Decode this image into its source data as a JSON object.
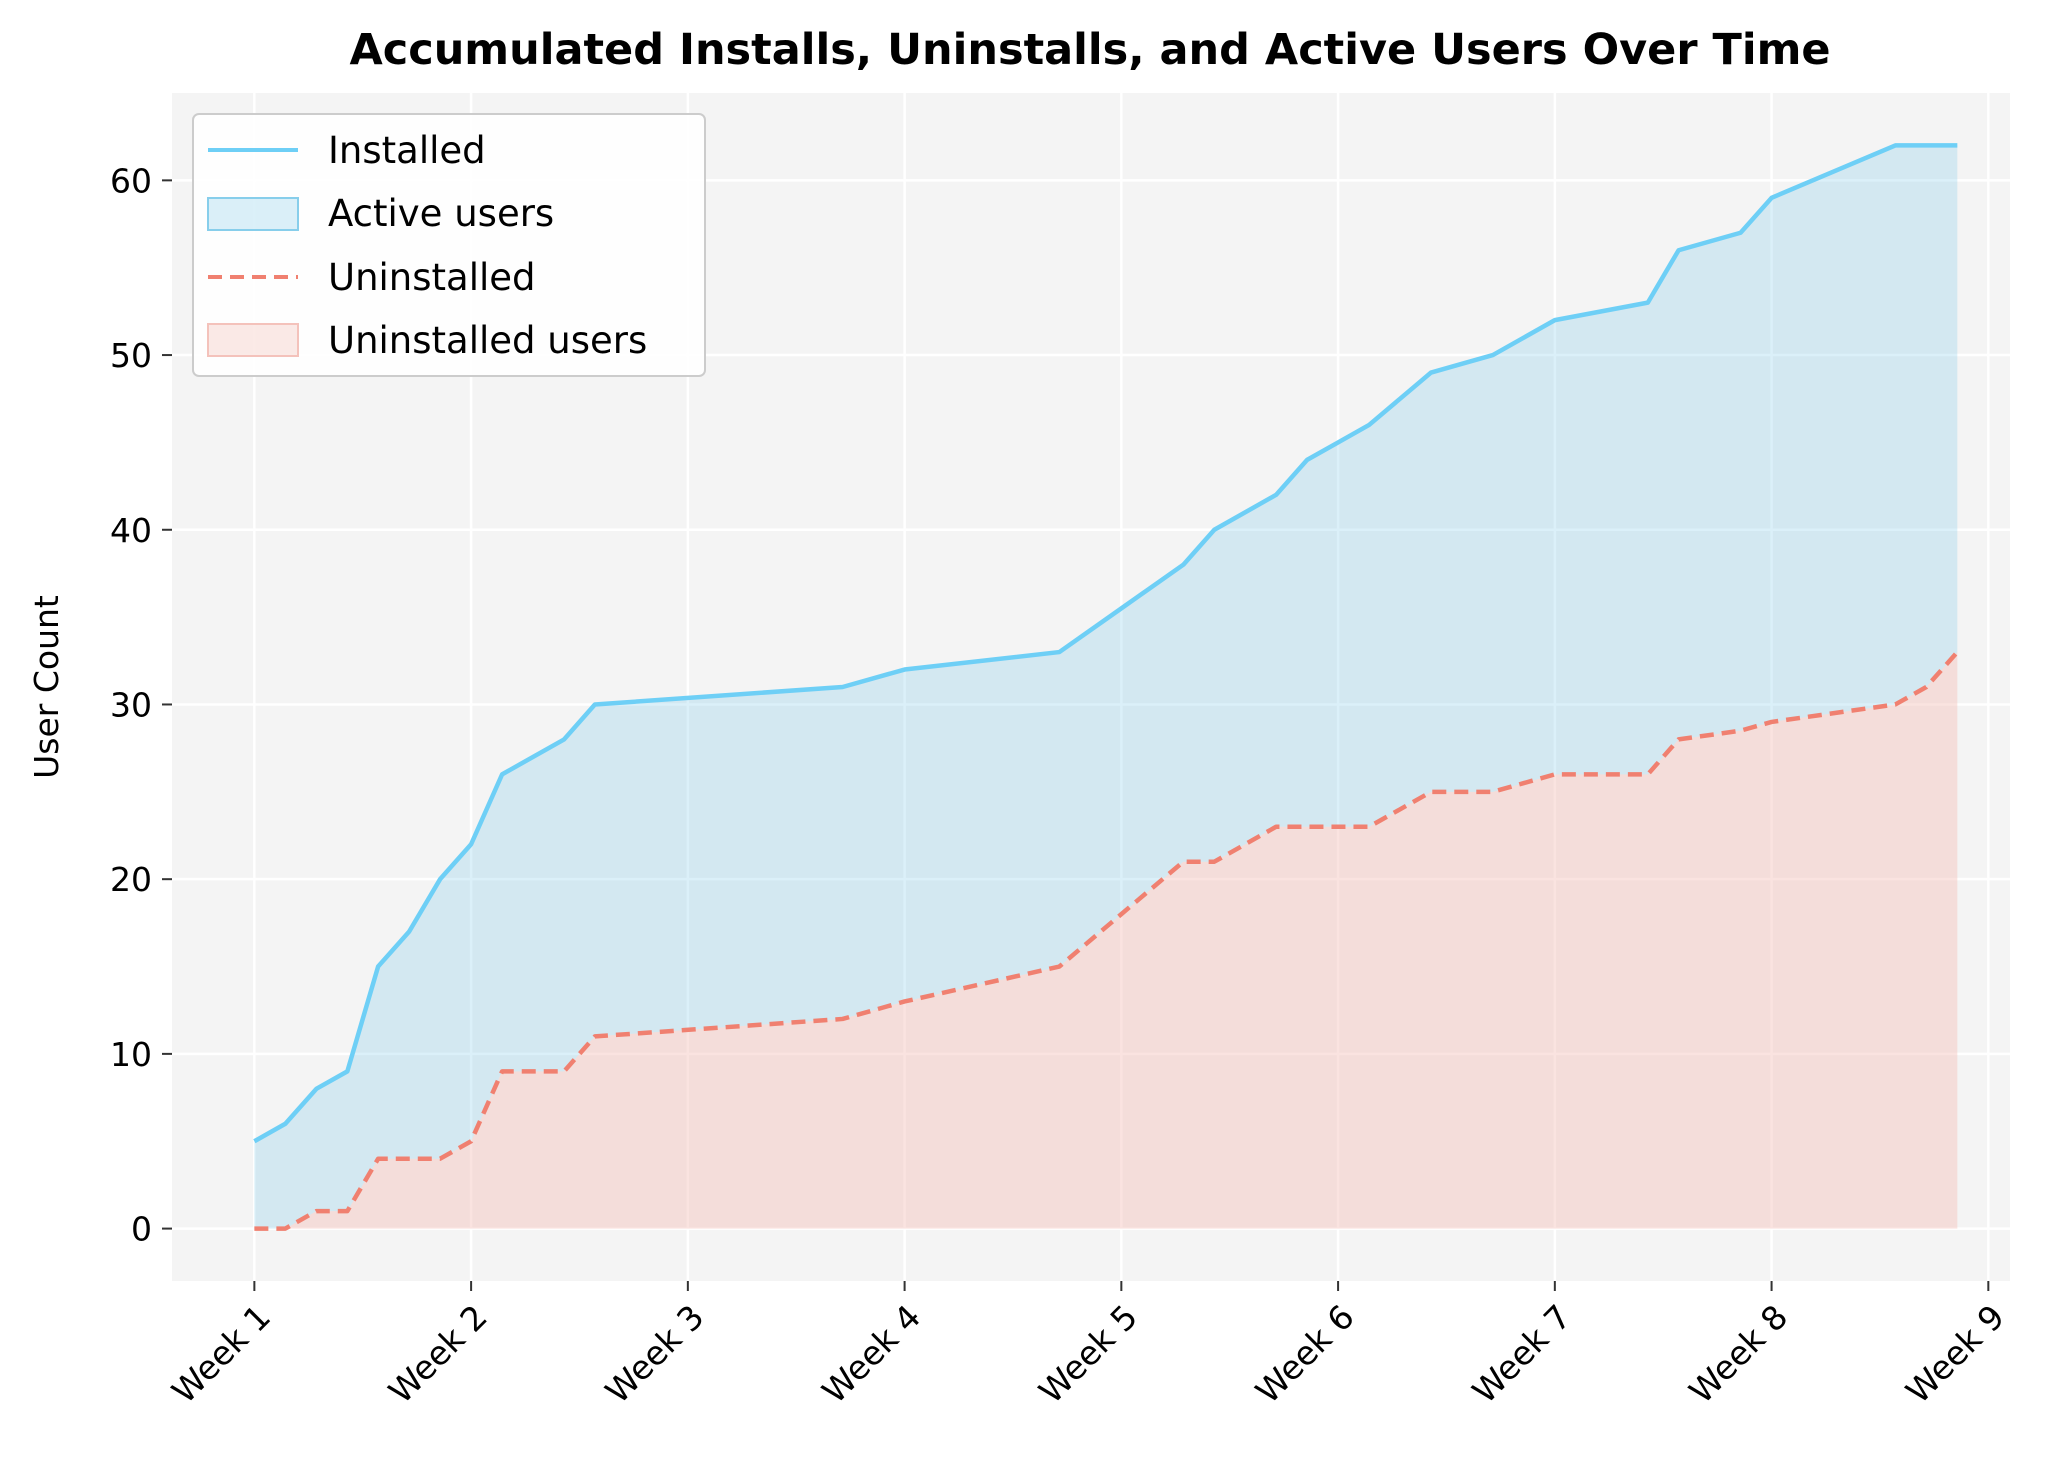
{
  "chart_data": {
    "type": "area",
    "title": "Accumulated Installs, Uninstalls, and Active Users Over Time",
    "xlabel": "",
    "ylabel": "User Count",
    "x_ticks": [
      "Week 1",
      "Week 2",
      "Week 3",
      "Week 4",
      "Week 5",
      "Week 6",
      "Week 7",
      "Week 8",
      "Week 9"
    ],
    "x_unit": "weeks since Week 1",
    "xlim": [
      -0.38,
      8.1
    ],
    "ylim": [
      -3,
      65
    ],
    "y_ticks": [
      0,
      10,
      20,
      30,
      40,
      50,
      60
    ],
    "grid": true,
    "legend_position": "top-left",
    "legend": [
      "Installed",
      "Active users",
      "Uninstalled",
      "Uninstalled users"
    ],
    "colors": {
      "installed": "#6ecff6",
      "active_fill": "#87ceeb",
      "uninstalled": "#f08070",
      "uninstalled_fill": "#f4c2bb",
      "plot_bg": "#f4f4f4"
    },
    "series": [
      {
        "name": "Installed",
        "style": "solid",
        "x": [
          0,
          0.143,
          0.286,
          0.429,
          0.571,
          0.714,
          0.857,
          1.0,
          1.143,
          1.429,
          1.571,
          2.714,
          3.0,
          3.714,
          4.0,
          4.286,
          4.429,
          4.714,
          4.857,
          5.0,
          5.143,
          5.429,
          5.571,
          5.714,
          6.0,
          6.429,
          6.571,
          6.857,
          7.0,
          7.571,
          7.714,
          7.857
        ],
        "values": [
          5,
          6,
          8,
          9,
          15,
          17,
          20,
          22,
          26,
          28,
          30,
          31,
          32,
          33,
          35.5,
          38,
          40,
          42,
          44,
          45,
          46,
          49,
          49.5,
          50,
          52,
          53,
          56,
          57,
          59,
          62,
          62,
          62
        ]
      },
      {
        "name": "Uninstalled",
        "style": "dashed",
        "x": [
          0,
          0.143,
          0.286,
          0.429,
          0.571,
          0.714,
          0.857,
          1.0,
          1.143,
          1.429,
          1.571,
          2.714,
          3.0,
          3.714,
          4.0,
          4.286,
          4.429,
          4.714,
          4.857,
          5.0,
          5.143,
          5.429,
          5.571,
          5.714,
          6.0,
          6.429,
          6.571,
          6.857,
          7.0,
          7.571,
          7.714,
          7.857
        ],
        "values": [
          0,
          0,
          1,
          1,
          4,
          4,
          4,
          5,
          9,
          9,
          11,
          12,
          13,
          15,
          18,
          21,
          21,
          23,
          23,
          23,
          23,
          25,
          25,
          25,
          26,
          26,
          28,
          28.5,
          29,
          30,
          31,
          33
        ]
      }
    ]
  }
}
